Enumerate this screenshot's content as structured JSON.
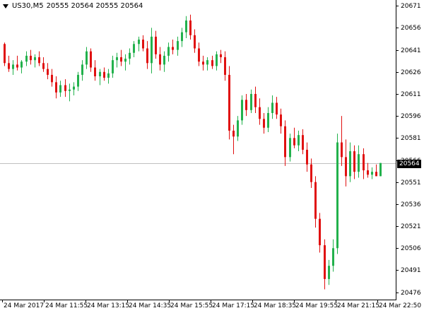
{
  "header": {
    "symbol_timeframe": "US30,M5",
    "ohlc": "20555 20564 20555 20564"
  },
  "current_price": "20564",
  "colors": {
    "bull": "#22b14c",
    "bear": "#e01010",
    "axis": "#000000",
    "price_line": "#c0c0c0",
    "price_box_bg": "#000000"
  },
  "chart_data": {
    "type": "candlestick",
    "instrument": "US30",
    "timeframe": "M5",
    "ylim": [
      20471,
      20674
    ],
    "y_ticks": [
      "20671",
      "20656",
      "20641",
      "20626",
      "20611",
      "20596",
      "20581",
      "20566",
      "20551",
      "20536",
      "20521",
      "20506",
      "20491",
      "20476"
    ],
    "x_ticks": [
      "24 Mar 2017",
      "24 Mar 11:55",
      "24 Mar 13:15",
      "24 Mar 14:35",
      "24 Mar 15:55",
      "24 Mar 17:15",
      "24 Mar 18:35",
      "24 Mar 19:55",
      "24 Mar 21:15",
      "24 Mar 22:50"
    ],
    "candles": [
      [
        20645,
        20646,
        20630,
        20632
      ],
      [
        20632,
        20637,
        20626,
        20628
      ],
      [
        20628,
        20634,
        20624,
        20631
      ],
      [
        20631,
        20637,
        20627,
        20629
      ],
      [
        20629,
        20634,
        20625,
        20633
      ],
      [
        20633,
        20640,
        20630,
        20637
      ],
      [
        20637,
        20641,
        20631,
        20634
      ],
      [
        20634,
        20638,
        20629,
        20636
      ],
      [
        20636,
        20640,
        20630,
        20632
      ],
      [
        20632,
        20636,
        20626,
        20628
      ],
      [
        20628,
        20632,
        20621,
        20624
      ],
      [
        20624,
        20628,
        20616,
        20619
      ],
      [
        20619,
        20623,
        20608,
        20612
      ],
      [
        20612,
        20620,
        20609,
        20617
      ],
      [
        20617,
        20621,
        20609,
        20613
      ],
      [
        20613,
        20618,
        20606,
        20614
      ],
      [
        20614,
        20619,
        20610,
        20616
      ],
      [
        20616,
        20626,
        20613,
        20624
      ],
      [
        20624,
        20634,
        20620,
        20631
      ],
      [
        20631,
        20643,
        20628,
        20640
      ],
      [
        20640,
        20642,
        20626,
        20629
      ],
      [
        20629,
        20634,
        20620,
        20623
      ],
      [
        20623,
        20628,
        20617,
        20626
      ],
      [
        20626,
        20629,
        20620,
        20622
      ],
      [
        20622,
        20628,
        20618,
        20625
      ],
      [
        20625,
        20637,
        20622,
        20634
      ],
      [
        20634,
        20639,
        20629,
        20636
      ],
      [
        20636,
        20641,
        20630,
        20633
      ],
      [
        20633,
        20638,
        20627,
        20635
      ],
      [
        20635,
        20642,
        20631,
        20639
      ],
      [
        20639,
        20647,
        20636,
        20645
      ],
      [
        20645,
        20650,
        20640,
        20648
      ],
      [
        20648,
        20651,
        20640,
        20642
      ],
      [
        20642,
        20647,
        20628,
        20632
      ],
      [
        20632,
        20656,
        20625,
        20650
      ],
      [
        20650,
        20654,
        20635,
        20638
      ],
      [
        20638,
        20643,
        20627,
        20631
      ],
      [
        20631,
        20640,
        20626,
        20637
      ],
      [
        20637,
        20646,
        20633,
        20643
      ],
      [
        20643,
        20648,
        20638,
        20641
      ],
      [
        20641,
        20650,
        20637,
        20647
      ],
      [
        20647,
        20656,
        20643,
        20653
      ],
      [
        20653,
        20664,
        20649,
        20661
      ],
      [
        20661,
        20665,
        20648,
        20651
      ],
      [
        20651,
        20655,
        20639,
        20642
      ],
      [
        20642,
        20646,
        20630,
        20633
      ],
      [
        20633,
        20637,
        20627,
        20631
      ],
      [
        20631,
        20636,
        20627,
        20634
      ],
      [
        20634,
        20637,
        20628,
        20630
      ],
      [
        20630,
        20640,
        20627,
        20638
      ],
      [
        20638,
        20641,
        20632,
        20636
      ],
      [
        20636,
        20640,
        20620,
        20624
      ],
      [
        20624,
        20630,
        20580,
        20586
      ],
      [
        20586,
        20590,
        20570,
        20582
      ],
      [
        20582,
        20596,
        20579,
        20593
      ],
      [
        20593,
        20610,
        20590,
        20607
      ],
      [
        20607,
        20611,
        20596,
        20600
      ],
      [
        20600,
        20614,
        20598,
        20611
      ],
      [
        20611,
        20616,
        20598,
        20602
      ],
      [
        20602,
        20608,
        20590,
        20594
      ],
      [
        20594,
        20598,
        20584,
        20588
      ],
      [
        20588,
        20602,
        20585,
        20598
      ],
      [
        20598,
        20610,
        20594,
        20605
      ],
      [
        20605,
        20609,
        20594,
        20597
      ],
      [
        20597,
        20601,
        20584,
        20589
      ],
      [
        20589,
        20593,
        20562,
        20568
      ],
      [
        20568,
        20584,
        20565,
        20581
      ],
      [
        20581,
        20588,
        20574,
        20576
      ],
      [
        20576,
        20586,
        20572,
        20583
      ],
      [
        20583,
        20587,
        20570,
        20573
      ],
      [
        20573,
        20578,
        20558,
        20563
      ],
      [
        20563,
        20567,
        20547,
        20551
      ],
      [
        20551,
        20555,
        20520,
        20526
      ],
      [
        20526,
        20530,
        20503,
        20508
      ],
      [
        20508,
        20512,
        20478,
        20485
      ],
      [
        20485,
        20498,
        20481,
        20494
      ],
      [
        20494,
        20512,
        20490,
        20506
      ],
      [
        20506,
        20584,
        20502,
        20578
      ],
      [
        20578,
        20596,
        20562,
        20568
      ],
      [
        20568,
        20580,
        20548,
        20555
      ],
      [
        20555,
        20578,
        20551,
        20572
      ],
      [
        20572,
        20576,
        20553,
        20558
      ],
      [
        20558,
        20576,
        20554,
        20570
      ],
      [
        20570,
        20574,
        20553,
        20559
      ],
      [
        20559,
        20564,
        20554,
        20556
      ],
      [
        20556,
        20561,
        20553,
        20558
      ],
      [
        20558,
        20563,
        20555,
        20555
      ],
      [
        20555,
        20564,
        20555,
        20564
      ]
    ]
  }
}
